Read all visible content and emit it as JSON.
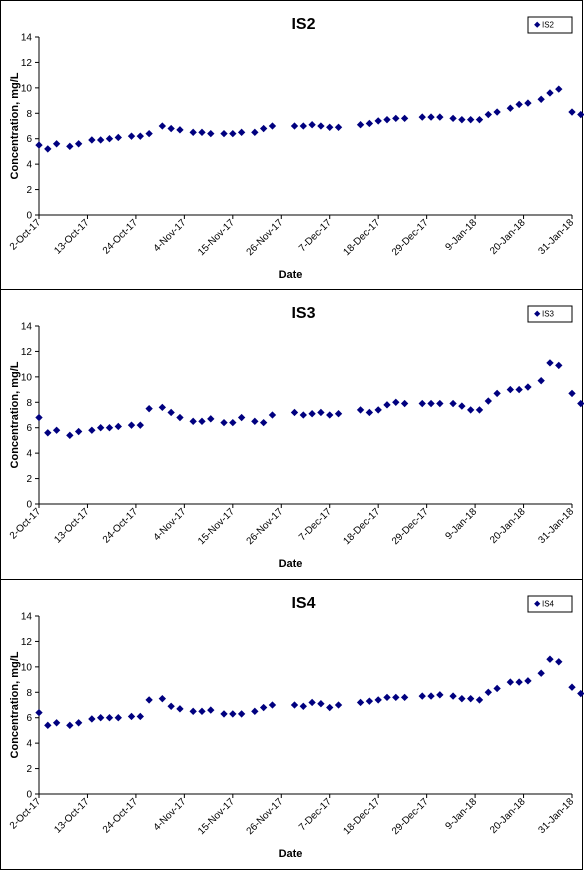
{
  "chart_data": [
    {
      "type": "scatter",
      "title": "IS2",
      "xlabel": "Date",
      "ylabel": "Concentration, mg/L",
      "ylim": [
        0,
        14
      ],
      "yticks": [
        0,
        2,
        4,
        6,
        8,
        10,
        12,
        14
      ],
      "xlim": [
        "2017-10-02",
        "2018-01-31"
      ],
      "xtick_labels": [
        "2-Oct-17",
        "13-Oct-17",
        "24-Oct-17",
        "4-Nov-17",
        "15-Nov-17",
        "26-Nov-17",
        "7-Dec-17",
        "18-Dec-17",
        "29-Dec-17",
        "9-Jan-18",
        "20-Jan-18",
        "31-Jan-18"
      ],
      "legend": "top-right",
      "marker_color": "#00007F",
      "series": [
        {
          "name": "IS2",
          "points": [
            [
              "2017-10-02",
              5.5
            ],
            [
              "2017-10-04",
              5.2
            ],
            [
              "2017-10-06",
              5.6
            ],
            [
              "2017-10-09",
              5.4
            ],
            [
              "2017-10-11",
              5.6
            ],
            [
              "2017-10-14",
              5.9
            ],
            [
              "2017-10-16",
              5.9
            ],
            [
              "2017-10-18",
              6.0
            ],
            [
              "2017-10-20",
              6.1
            ],
            [
              "2017-10-23",
              6.2
            ],
            [
              "2017-10-25",
              6.2
            ],
            [
              "2017-10-27",
              6.4
            ],
            [
              "2017-10-30",
              7.0
            ],
            [
              "2017-11-01",
              6.8
            ],
            [
              "2017-11-03",
              6.7
            ],
            [
              "2017-11-06",
              6.5
            ],
            [
              "2017-11-08",
              6.5
            ],
            [
              "2017-11-10",
              6.4
            ],
            [
              "2017-11-13",
              6.4
            ],
            [
              "2017-11-15",
              6.4
            ],
            [
              "2017-11-17",
              6.5
            ],
            [
              "2017-11-20",
              6.5
            ],
            [
              "2017-11-22",
              6.8
            ],
            [
              "2017-11-24",
              7.0
            ],
            [
              "2017-11-29",
              7.0
            ],
            [
              "2017-12-01",
              7.0
            ],
            [
              "2017-12-03",
              7.1
            ],
            [
              "2017-12-05",
              7.0
            ],
            [
              "2017-12-07",
              6.9
            ],
            [
              "2017-12-09",
              6.9
            ],
            [
              "2017-12-14",
              7.1
            ],
            [
              "2017-12-16",
              7.2
            ],
            [
              "2017-12-18",
              7.4
            ],
            [
              "2017-12-20",
              7.5
            ],
            [
              "2017-12-22",
              7.6
            ],
            [
              "2017-12-24",
              7.6
            ],
            [
              "2017-12-28",
              7.7
            ],
            [
              "2017-12-30",
              7.7
            ],
            [
              "2018-01-01",
              7.7
            ],
            [
              "2018-01-04",
              7.6
            ],
            [
              "2018-01-06",
              7.5
            ],
            [
              "2018-01-08",
              7.5
            ],
            [
              "2018-01-10",
              7.5
            ],
            [
              "2018-01-12",
              7.9
            ],
            [
              "2018-01-14",
              8.1
            ],
            [
              "2018-01-17",
              8.4
            ],
            [
              "2018-01-19",
              8.7
            ],
            [
              "2018-01-21",
              8.8
            ],
            [
              "2018-01-24",
              9.1
            ],
            [
              "2018-01-26",
              9.6
            ],
            [
              "2018-01-28",
              9.9
            ],
            [
              "2018-01-31",
              8.1
            ],
            [
              "2018-02-02",
              7.9
            ]
          ]
        }
      ]
    },
    {
      "type": "scatter",
      "title": "IS3",
      "xlabel": "Date",
      "ylabel": "Concentration, mg/L",
      "ylim": [
        0,
        14
      ],
      "yticks": [
        0,
        2,
        4,
        6,
        8,
        10,
        12,
        14
      ],
      "xlim": [
        "2017-10-02",
        "2018-01-31"
      ],
      "xtick_labels": [
        "2-Oct-17",
        "13-Oct-17",
        "24-Oct-17",
        "4-Nov-17",
        "15-Nov-17",
        "26-Nov-17",
        "7-Dec-17",
        "18-Dec-17",
        "29-Dec-17",
        "9-Jan-18",
        "20-Jan-18",
        "31-Jan-18"
      ],
      "legend": "top-right",
      "marker_color": "#00007F",
      "series": [
        {
          "name": "IS3",
          "points": [
            [
              "2017-10-02",
              6.8
            ],
            [
              "2017-10-04",
              5.6
            ],
            [
              "2017-10-06",
              5.8
            ],
            [
              "2017-10-09",
              5.4
            ],
            [
              "2017-10-11",
              5.7
            ],
            [
              "2017-10-14",
              5.8
            ],
            [
              "2017-10-16",
              6.0
            ],
            [
              "2017-10-18",
              6.0
            ],
            [
              "2017-10-20",
              6.1
            ],
            [
              "2017-10-23",
              6.2
            ],
            [
              "2017-10-25",
              6.2
            ],
            [
              "2017-10-27",
              7.5
            ],
            [
              "2017-10-30",
              7.6
            ],
            [
              "2017-11-01",
              7.2
            ],
            [
              "2017-11-03",
              6.8
            ],
            [
              "2017-11-06",
              6.5
            ],
            [
              "2017-11-08",
              6.5
            ],
            [
              "2017-11-10",
              6.7
            ],
            [
              "2017-11-13",
              6.4
            ],
            [
              "2017-11-15",
              6.4
            ],
            [
              "2017-11-17",
              6.8
            ],
            [
              "2017-11-20",
              6.5
            ],
            [
              "2017-11-22",
              6.4
            ],
            [
              "2017-11-24",
              7.0
            ],
            [
              "2017-11-29",
              7.2
            ],
            [
              "2017-12-01",
              7.0
            ],
            [
              "2017-12-03",
              7.1
            ],
            [
              "2017-12-05",
              7.2
            ],
            [
              "2017-12-07",
              7.0
            ],
            [
              "2017-12-09",
              7.1
            ],
            [
              "2017-12-14",
              7.4
            ],
            [
              "2017-12-16",
              7.2
            ],
            [
              "2017-12-18",
              7.4
            ],
            [
              "2017-12-20",
              7.8
            ],
            [
              "2017-12-22",
              8.0
            ],
            [
              "2017-12-24",
              7.9
            ],
            [
              "2017-12-28",
              7.9
            ],
            [
              "2017-12-30",
              7.9
            ],
            [
              "2018-01-01",
              7.9
            ],
            [
              "2018-01-04",
              7.9
            ],
            [
              "2018-01-06",
              7.7
            ],
            [
              "2018-01-08",
              7.4
            ],
            [
              "2018-01-10",
              7.4
            ],
            [
              "2018-01-12",
              8.1
            ],
            [
              "2018-01-14",
              8.7
            ],
            [
              "2018-01-17",
              9.0
            ],
            [
              "2018-01-19",
              9.0
            ],
            [
              "2018-01-21",
              9.2
            ],
            [
              "2018-01-24",
              9.7
            ],
            [
              "2018-01-26",
              11.1
            ],
            [
              "2018-01-28",
              10.9
            ],
            [
              "2018-01-31",
              8.7
            ],
            [
              "2018-02-02",
              7.9
            ]
          ]
        }
      ]
    },
    {
      "type": "scatter",
      "title": "IS4",
      "xlabel": "Date",
      "ylabel": "Concentration, mg/L",
      "ylim": [
        0,
        14
      ],
      "yticks": [
        0,
        2,
        4,
        6,
        8,
        10,
        12,
        14
      ],
      "xlim": [
        "2017-10-02",
        "2018-01-31"
      ],
      "xtick_labels": [
        "2-Oct-17",
        "13-Oct-17",
        "24-Oct-17",
        "4-Nov-17",
        "15-Nov-17",
        "26-Nov-17",
        "7-Dec-17",
        "18-Dec-17",
        "29-Dec-17",
        "9-Jan-18",
        "20-Jan-18",
        "31-Jan-18"
      ],
      "legend": "top-right",
      "marker_color": "#00007F",
      "series": [
        {
          "name": "IS4",
          "points": [
            [
              "2017-10-02",
              6.4
            ],
            [
              "2017-10-04",
              5.4
            ],
            [
              "2017-10-06",
              5.6
            ],
            [
              "2017-10-09",
              5.4
            ],
            [
              "2017-10-11",
              5.6
            ],
            [
              "2017-10-14",
              5.9
            ],
            [
              "2017-10-16",
              6.0
            ],
            [
              "2017-10-18",
              6.0
            ],
            [
              "2017-10-20",
              6.0
            ],
            [
              "2017-10-23",
              6.1
            ],
            [
              "2017-10-25",
              6.1
            ],
            [
              "2017-10-27",
              7.4
            ],
            [
              "2017-10-30",
              7.5
            ],
            [
              "2017-11-01",
              6.9
            ],
            [
              "2017-11-03",
              6.7
            ],
            [
              "2017-11-06",
              6.5
            ],
            [
              "2017-11-08",
              6.5
            ],
            [
              "2017-11-10",
              6.6
            ],
            [
              "2017-11-13",
              6.3
            ],
            [
              "2017-11-15",
              6.3
            ],
            [
              "2017-11-17",
              6.3
            ],
            [
              "2017-11-20",
              6.5
            ],
            [
              "2017-11-22",
              6.8
            ],
            [
              "2017-11-24",
              7.0
            ],
            [
              "2017-11-29",
              7.0
            ],
            [
              "2017-12-01",
              6.9
            ],
            [
              "2017-12-03",
              7.2
            ],
            [
              "2017-12-05",
              7.1
            ],
            [
              "2017-12-07",
              6.8
            ],
            [
              "2017-12-09",
              7.0
            ],
            [
              "2017-12-14",
              7.2
            ],
            [
              "2017-12-16",
              7.3
            ],
            [
              "2017-12-18",
              7.4
            ],
            [
              "2017-12-20",
              7.6
            ],
            [
              "2017-12-22",
              7.6
            ],
            [
              "2017-12-24",
              7.6
            ],
            [
              "2017-12-28",
              7.7
            ],
            [
              "2017-12-30",
              7.7
            ],
            [
              "2018-01-01",
              7.8
            ],
            [
              "2018-01-04",
              7.7
            ],
            [
              "2018-01-06",
              7.5
            ],
            [
              "2018-01-08",
              7.5
            ],
            [
              "2018-01-10",
              7.4
            ],
            [
              "2018-01-12",
              8.0
            ],
            [
              "2018-01-14",
              8.3
            ],
            [
              "2018-01-17",
              8.8
            ],
            [
              "2018-01-19",
              8.8
            ],
            [
              "2018-01-21",
              8.9
            ],
            [
              "2018-01-24",
              9.5
            ],
            [
              "2018-01-26",
              10.6
            ],
            [
              "2018-01-28",
              10.4
            ],
            [
              "2018-01-31",
              8.4
            ],
            [
              "2018-02-02",
              7.9
            ]
          ]
        }
      ]
    }
  ]
}
